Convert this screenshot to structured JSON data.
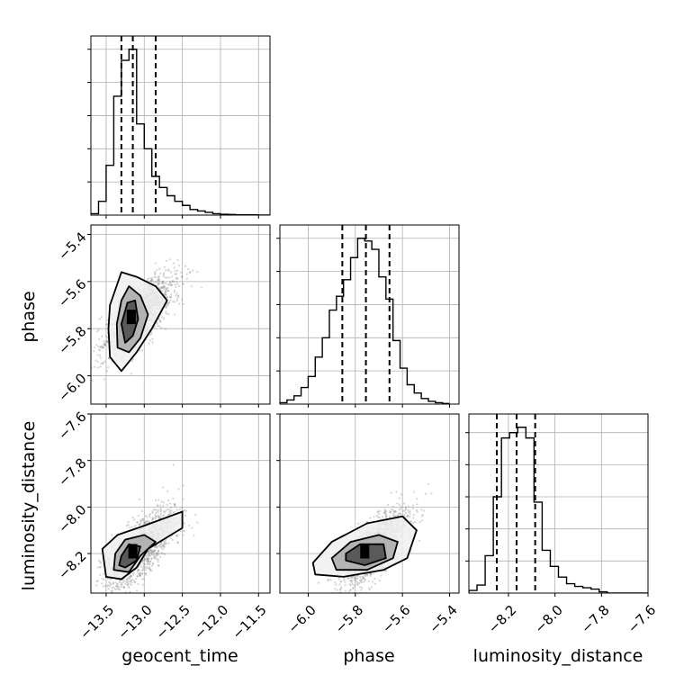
{
  "chart_data": {
    "type": "corner",
    "parameters": [
      {
        "key": "geocent_time",
        "label": "geocent_time",
        "range": [
          -13.7,
          -11.35
        ],
        "ticks": [
          -13.5,
          -13.0,
          -12.5,
          -12.0,
          -11.5
        ],
        "tick_labels": [
          "−13.5",
          "−13.0",
          "−12.5",
          "−12.0",
          "−11.5"
        ],
        "quantiles": [
          -13.3,
          -13.15,
          -12.85
        ]
      },
      {
        "key": "phase",
        "label": "phase",
        "range": [
          -6.12,
          -5.36
        ],
        "ticks": [
          -6.0,
          -5.8,
          -5.6,
          -5.4
        ],
        "tick_labels": [
          "−6.0",
          "−5.8",
          "−5.6",
          "−5.4"
        ],
        "quantiles": [
          -5.855,
          -5.755,
          -5.655
        ]
      },
      {
        "key": "luminosity_distance",
        "label": "luminosity_distance",
        "range": [
          -8.37,
          -7.6
        ],
        "ticks": [
          -8.2,
          -8.0,
          -7.8,
          -7.6
        ],
        "tick_labels": [
          "−8.2",
          "−8.0",
          "−7.8",
          "−7.6"
        ],
        "quantiles": [
          -8.25,
          -8.165,
          -8.085
        ]
      }
    ],
    "histograms": [
      {
        "param": "geocent_time",
        "bin_edges": [
          -13.7,
          -13.6,
          -13.5,
          -13.4,
          -13.3,
          -13.2,
          -13.1,
          -13.0,
          -12.9,
          -12.8,
          -12.7,
          -12.6,
          -12.5,
          -12.4,
          -12.3,
          -12.2,
          -12.1,
          -12.0,
          -11.9,
          -11.8,
          -11.7,
          -11.6,
          -11.5,
          -11.4,
          -11.35
        ],
        "counts": [
          0.5,
          5,
          18,
          43,
          56,
          60,
          33,
          24,
          14,
          10,
          7,
          5,
          3.5,
          2,
          1.5,
          1,
          0.5,
          0.3,
          0.2,
          0.1,
          0.1,
          0.1,
          0,
          0
        ]
      },
      {
        "param": "phase",
        "bin_edges": [
          -6.12,
          -6.09,
          -6.06,
          -6.03,
          -6.0,
          -5.97,
          -5.94,
          -5.91,
          -5.88,
          -5.85,
          -5.82,
          -5.79,
          -5.76,
          -5.73,
          -5.7,
          -5.67,
          -5.64,
          -5.61,
          -5.58,
          -5.55,
          -5.52,
          -5.49,
          -5.46,
          -5.43,
          -5.4
        ],
        "counts": [
          0.5,
          1.5,
          3,
          6,
          10,
          17,
          24,
          34,
          39,
          45,
          53,
          60,
          59,
          56,
          46,
          38,
          23,
          13,
          7,
          4,
          2,
          1,
          0.5,
          0.2
        ]
      },
      {
        "param": "luminosity_distance",
        "bin_edges": [
          -8.37,
          -8.335,
          -8.3,
          -8.265,
          -8.23,
          -8.195,
          -8.16,
          -8.125,
          -8.09,
          -8.055,
          -8.02,
          -7.985,
          -7.95,
          -7.915,
          -7.88,
          -7.845,
          -7.81,
          -7.775,
          -7.74,
          -7.705,
          -7.67,
          -7.635,
          -7.6
        ],
        "counts": [
          1,
          3,
          14,
          36,
          58,
          60,
          62,
          58,
          34,
          16,
          10,
          6,
          3.5,
          2.5,
          2,
          1.5,
          0.5,
          0,
          0,
          0,
          0,
          0
        ]
      }
    ],
    "scatter_2d": [
      {
        "x": "geocent_time",
        "y": "phase",
        "contours": [
          [
            [
              -13.45,
              -5.7
            ],
            [
              -13.3,
              -5.56
            ],
            [
              -13.1,
              -5.58
            ],
            [
              -12.85,
              -5.62
            ],
            [
              -12.7,
              -5.68
            ],
            [
              -12.9,
              -5.8
            ],
            [
              -13.1,
              -5.9
            ],
            [
              -13.3,
              -5.98
            ],
            [
              -13.45,
              -5.92
            ],
            [
              -13.47,
              -5.8
            ]
          ],
          [
            [
              -13.3,
              -5.68
            ],
            [
              -13.2,
              -5.62
            ],
            [
              -13.05,
              -5.66
            ],
            [
              -12.95,
              -5.74
            ],
            [
              -13.05,
              -5.84
            ],
            [
              -13.2,
              -5.9
            ],
            [
              -13.35,
              -5.88
            ],
            [
              -13.36,
              -5.78
            ]
          ],
          [
            [
              -13.22,
              -5.69
            ],
            [
              -13.12,
              -5.68
            ],
            [
              -13.08,
              -5.76
            ],
            [
              -13.15,
              -5.83
            ],
            [
              -13.25,
              -5.86
            ],
            [
              -13.3,
              -5.78
            ]
          ]
        ],
        "peak": [
          -13.17,
          -5.75
        ]
      },
      {
        "x": "geocent_time",
        "y": "luminosity_distance",
        "contours": [
          [
            [
              -13.55,
              -8.18
            ],
            [
              -13.35,
              -8.12
            ],
            [
              -13.0,
              -8.08
            ],
            [
              -12.5,
              -8.02
            ],
            [
              -12.5,
              -8.09
            ],
            [
              -12.95,
              -8.18
            ],
            [
              -13.1,
              -8.26
            ],
            [
              -13.3,
              -8.31
            ],
            [
              -13.5,
              -8.3
            ]
          ],
          [
            [
              -13.38,
              -8.2
            ],
            [
              -13.25,
              -8.14
            ],
            [
              -13.0,
              -8.12
            ],
            [
              -12.85,
              -8.15
            ],
            [
              -13.05,
              -8.21
            ],
            [
              -13.2,
              -8.28
            ],
            [
              -13.4,
              -8.27
            ]
          ],
          [
            [
              -13.3,
              -8.21
            ],
            [
              -13.2,
              -8.16
            ],
            [
              -13.05,
              -8.17
            ],
            [
              -13.1,
              -8.23
            ],
            [
              -13.25,
              -8.26
            ],
            [
              -13.33,
              -8.25
            ]
          ]
        ],
        "peak": [
          -13.15,
          -8.19
        ]
      },
      {
        "x": "phase",
        "y": "luminosity_distance",
        "contours": [
          [
            [
              -5.98,
              -8.24
            ],
            [
              -5.9,
              -8.15
            ],
            [
              -5.75,
              -8.07
            ],
            [
              -5.6,
              -8.04
            ],
            [
              -5.54,
              -8.1
            ],
            [
              -5.58,
              -8.22
            ],
            [
              -5.68,
              -8.27
            ],
            [
              -5.85,
              -8.3
            ],
            [
              -5.97,
              -8.29
            ]
          ],
          [
            [
              -5.9,
              -8.22
            ],
            [
              -5.82,
              -8.15
            ],
            [
              -5.7,
              -8.12
            ],
            [
              -5.62,
              -8.15
            ],
            [
              -5.64,
              -8.22
            ],
            [
              -5.75,
              -8.27
            ],
            [
              -5.88,
              -8.27
            ]
          ],
          [
            [
              -5.84,
              -8.2
            ],
            [
              -5.78,
              -8.16
            ],
            [
              -5.68,
              -8.16
            ],
            [
              -5.67,
              -8.22
            ],
            [
              -5.76,
              -8.25
            ],
            [
              -5.84,
              -8.23
            ]
          ]
        ],
        "peak": [
          -5.76,
          -8.19
        ]
      }
    ],
    "grid": true,
    "xlabels": [
      "geocent_time",
      "phase",
      "luminosity_distance"
    ],
    "ylabels": [
      "phase",
      "luminosity_distance"
    ]
  }
}
